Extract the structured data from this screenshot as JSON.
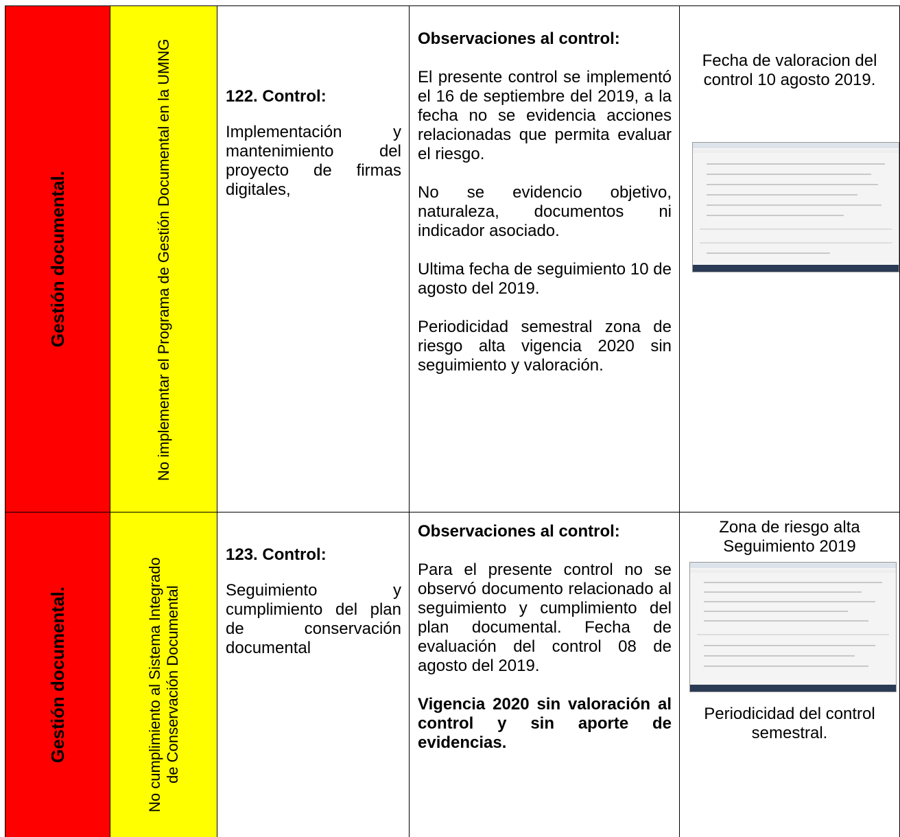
{
  "table": {
    "rows": [
      {
        "process": "Gestión documental.",
        "risk": "No implementar el Programa de Gestión Documental en la UMNG",
        "control_title": "122. Control:",
        "control_text": "Implementación y mantenimiento del proyecto de firmas digitales,",
        "observations": {
          "heading": "Observaciones al control:",
          "paragraphs": [
            "El presente control se implementó el 16 de septiembre del 2019, a la fecha no se evidencia acciones relacionadas que permita evaluar el riesgo.",
            "No se evidencio objetivo, naturaleza, documentos ni indicador asociado.",
            "Ultima fecha de seguimiento 10 de agosto del 2019.",
            "Periodicidad semestral zona de riesgo alta vigencia 2020 sin seguimiento y valoración."
          ]
        },
        "evidence": {
          "caption": "Fecha de valoracion del control 10 agosto 2019."
        }
      },
      {
        "process": "Gestión documental.",
        "risk": "No cumplimiento al Sistema Integrado de Conservación Documental",
        "control_title": "123. Control:",
        "control_text": "Seguimiento y cumplimiento del plan de conservación documental",
        "observations": {
          "heading": "Observaciones al control:",
          "paragraphs": [
            "Para el presente control no se observó documento relacionado al seguimiento y cumplimiento del plan documental. Fecha de evaluación del control 08 de agosto del 2019."
          ],
          "emphasis": "Vigencia 2020 sin valoración al control y sin aporte de evidencias."
        },
        "evidence": {
          "caption_top": "Zona de riesgo alta Seguimiento 2019",
          "caption_bottom": "Periodicidad del control semestral."
        }
      }
    ]
  }
}
